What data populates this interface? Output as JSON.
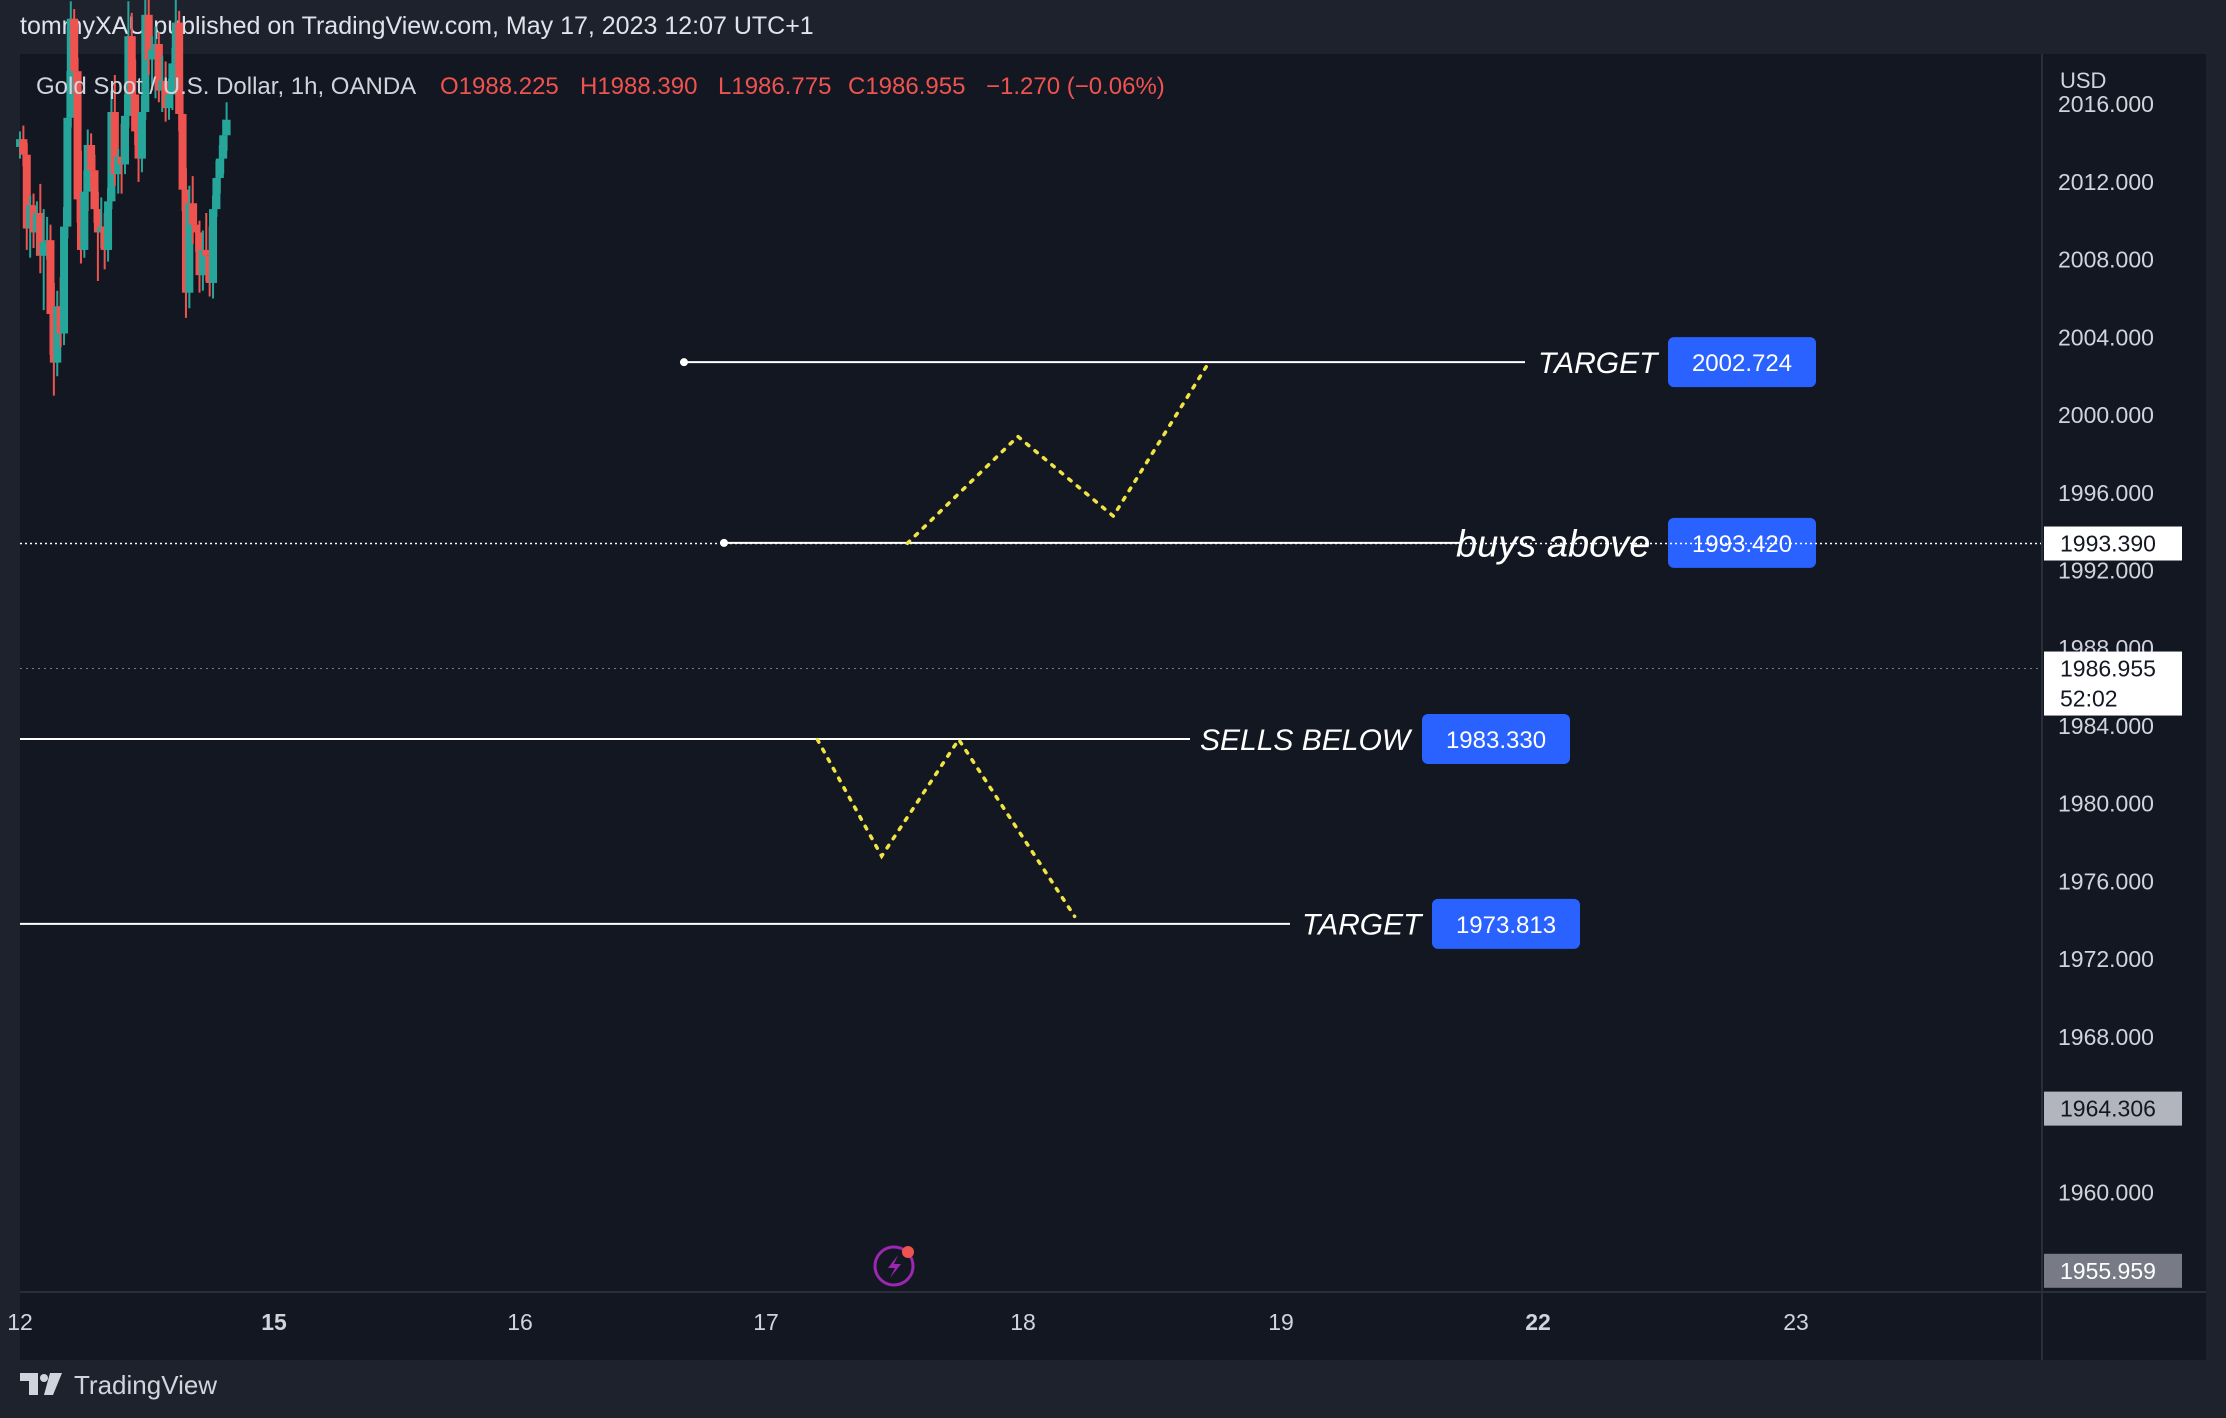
{
  "header": {
    "publisher": "tommyXAU published on TradingView.com, May 17, 2023 12:07 UTC+1"
  },
  "ohlc": {
    "symbol": "Gold Spot / U.S. Dollar, 1h, OANDA",
    "open": "O1988.225",
    "high": "H1988.390",
    "low": "L1986.775",
    "close": "C1986.955",
    "change": "−1.270 (−0.06%)"
  },
  "price_axis": {
    "currency": "USD",
    "crosshair_price": "1993.390",
    "current_price": "1986.955",
    "countdown": "52:02",
    "high_badge": "1964.306",
    "low_badge": "1955.959"
  },
  "annotations": [
    {
      "text": "TARGET",
      "value": "2002.724"
    },
    {
      "text": "buys above",
      "value": "1993.420"
    },
    {
      "text": "SELLS BELOW",
      "value": "1983.330"
    },
    {
      "text": "TARGET",
      "value": "1973.813"
    }
  ],
  "footer": {
    "brand": "TradingView"
  },
  "colors": {
    "up": "#26a69a",
    "down": "#ef5350",
    "projection": "#f0e442",
    "badge": "#2962ff",
    "background": "#131722"
  },
  "chart_data": {
    "type": "candlestick",
    "title": "Gold Spot / U.S. Dollar, 1h, OANDA",
    "ylabel": "USD",
    "ylim": [
      1955.959,
      2022.0
    ],
    "y_ticks": [
      2016,
      2012,
      2008,
      2004,
      2000,
      1996,
      1992,
      1988,
      1984,
      1980,
      1976,
      1972,
      1968,
      1960
    ],
    "x_tick_labels": [
      "12",
      "15",
      "16",
      "17",
      "18",
      "19",
      "22",
      "23"
    ],
    "horizontal_levels": [
      {
        "label": "TARGET",
        "value": 2002.724
      },
      {
        "label": "buys above",
        "value": 1993.42
      },
      {
        "label": "SELLS BELOW",
        "value": 1983.33
      },
      {
        "label": "TARGET",
        "value": 1973.813
      }
    ],
    "projection_paths": [
      {
        "name": "bullish",
        "points": [
          [
            17.55,
            1993.4
          ],
          [
            17.98,
            1998.9
          ],
          [
            18.35,
            1994.8
          ],
          [
            18.72,
            2002.7
          ]
        ]
      },
      {
        "name": "bearish",
        "points": [
          [
            17.2,
            1983.3
          ],
          [
            17.45,
            1977.3
          ],
          [
            17.75,
            1983.3
          ],
          [
            18.2,
            1974.2
          ]
        ]
      }
    ],
    "candles": [
      [
        12.0,
        2013.8,
        2014.6,
        2013.2,
        2014.2
      ],
      [
        12.04,
        2014.2,
        2014.9,
        2012.8,
        2013.4
      ],
      [
        12.08,
        2013.4,
        2014.0,
        2008.5,
        2009.6
      ],
      [
        12.12,
        2009.6,
        2011.3,
        2008.1,
        2010.8
      ],
      [
        12.16,
        2010.8,
        2011.4,
        2008.6,
        2009.4
      ],
      [
        12.2,
        2009.4,
        2011.0,
        2008.2,
        2010.4
      ],
      [
        12.24,
        2010.4,
        2011.9,
        2007.3,
        2008.2
      ],
      [
        12.28,
        2008.2,
        2010.6,
        2005.4,
        2008.9
      ],
      [
        12.32,
        2008.9,
        2010.2,
        2008.0,
        2009.0
      ],
      [
        12.36,
        2009.0,
        2009.8,
        2003.1,
        2005.2
      ],
      [
        12.4,
        2005.2,
        2006.8,
        2001.0,
        2002.7
      ],
      [
        12.44,
        2002.7,
        2006.4,
        2002.0,
        2005.6
      ],
      [
        12.48,
        2005.6,
        2007.1,
        2003.5,
        2004.2
      ],
      [
        12.52,
        2004.2,
        2010.7,
        2003.6,
        2009.7
      ],
      [
        12.56,
        2009.7,
        2017.7,
        2009.1,
        2015.3
      ],
      [
        12.6,
        2015.3,
        2021.3,
        2014.8,
        2020.4
      ],
      [
        12.64,
        2020.4,
        2020.9,
        2016.5,
        2017.7
      ],
      [
        12.68,
        2017.7,
        2018.4,
        2009.9,
        2011.1
      ],
      [
        12.72,
        2011.1,
        2013.6,
        2007.8,
        2008.5
      ],
      [
        12.76,
        2008.5,
        2012.6,
        2008.1,
        2011.5
      ],
      [
        12.8,
        2011.5,
        2014.7,
        2010.5,
        2013.9
      ],
      [
        12.84,
        2013.9,
        2014.5,
        2011.8,
        2012.6
      ],
      [
        12.88,
        2012.6,
        2013.4,
        2009.9,
        2010.6
      ],
      [
        12.92,
        2010.6,
        2011.5,
        2006.9,
        2009.4
      ],
      [
        12.96,
        2009.4,
        2011.2,
        2008.6,
        2009.7
      ],
      [
        13.0,
        2009.7,
        2010.4,
        2007.5,
        2008.5
      ],
      [
        13.04,
        2008.5,
        2011.7,
        2007.9,
        2011.0
      ],
      [
        13.08,
        2011.0,
        2016.7,
        2010.6,
        2015.6
      ],
      [
        13.12,
        2015.6,
        2017.5,
        2011.8,
        2012.4
      ],
      [
        13.16,
        2012.4,
        2013.7,
        2011.4,
        2013.3
      ],
      [
        13.2,
        2013.3,
        2015.0,
        2011.4,
        2012.9
      ],
      [
        13.24,
        2012.9,
        2016.5,
        2012.4,
        2015.4
      ],
      [
        13.28,
        2015.4,
        2021.3,
        2014.8,
        2019.5
      ],
      [
        13.32,
        2019.5,
        2020.7,
        2015.4,
        2016.5
      ],
      [
        13.36,
        2016.5,
        2018.3,
        2013.9,
        2014.6
      ],
      [
        13.4,
        2014.6,
        2015.4,
        2012.0,
        2013.2
      ],
      [
        13.44,
        2013.2,
        2016.4,
        2012.5,
        2015.6
      ],
      [
        13.48,
        2015.6,
        2021.9,
        2015.2,
        2020.6
      ],
      [
        13.52,
        2020.6,
        2021.9,
        2017.5,
        2018.3
      ],
      [
        13.56,
        2018.3,
        2019.5,
        2016.7,
        2018.8
      ],
      [
        13.6,
        2018.8,
        2020.0,
        2016.3,
        2019.1
      ],
      [
        13.64,
        2019.1,
        2019.7,
        2016.1,
        2016.7
      ],
      [
        13.68,
        2016.7,
        2018.5,
        2015.6,
        2017.2
      ],
      [
        13.72,
        2017.2,
        2018.2,
        2015.1,
        2015.8
      ],
      [
        13.76,
        2015.8,
        2017.3,
        2015.2,
        2016.5
      ],
      [
        13.8,
        2016.5,
        2018.9,
        2015.7,
        2018.1
      ],
      [
        13.84,
        2018.1,
        2021.7,
        2017.6,
        2020.2
      ],
      [
        13.88,
        2020.2,
        2020.8,
        2014.6,
        2015.5
      ],
      [
        13.92,
        2015.5,
        2016.6,
        2010.5,
        2011.6
      ],
      [
        13.96,
        2011.6,
        2012.7,
        2005.0,
        2006.3
      ],
      [
        14.0,
        2006.3,
        2011.8,
        2005.5,
        2010.9
      ],
      [
        14.04,
        2010.9,
        2012.3,
        2008.8,
        2009.8
      ],
      [
        14.08,
        2009.8,
        2010.9,
        2008.4,
        2009.4
      ],
      [
        14.12,
        2009.4,
        2010.0,
        2006.3,
        2007.2
      ],
      [
        14.16,
        2007.2,
        2009.5,
        2006.4,
        2008.5
      ],
      [
        14.2,
        2008.5,
        2010.4,
        2006.9,
        2008.2
      ],
      [
        14.24,
        2008.2,
        2009.7,
        2006.1,
        2006.8
      ],
      [
        14.28,
        2006.8,
        2011.3,
        2006.0,
        2010.6
      ],
      [
        14.32,
        2010.6,
        2013.1,
        2010.2,
        2012.2
      ],
      [
        14.36,
        2012.2,
        2013.9,
        2011.4,
        2013.2
      ],
      [
        14.4,
        2013.2,
        2015.2,
        2012.4,
        2014.4
      ],
      [
        14.44,
        2014.4,
        2016.1,
        2013.6,
        2015.2
      ]
    ]
  }
}
